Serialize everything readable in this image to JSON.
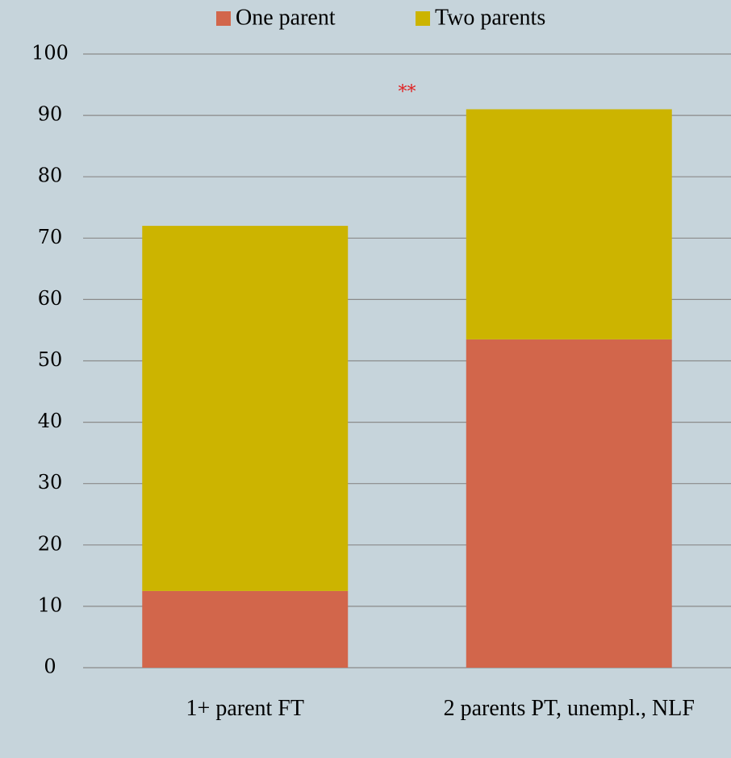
{
  "chart_data": {
    "type": "stacked_bar",
    "categories": [
      "1+ parent FT",
      "2 parents PT, unempl., NLF"
    ],
    "series": [
      {
        "name": "One parent",
        "color": "#d2664b",
        "values": [
          12.5,
          53.5
        ]
      },
      {
        "name": "Two parents",
        "color": "#ccb400",
        "values": [
          59.5,
          37.5
        ]
      }
    ],
    "annotation": "**",
    "ylim": [
      0,
      100
    ],
    "yticks": [
      0,
      10,
      20,
      30,
      40,
      50,
      60,
      70,
      80,
      90,
      100
    ],
    "grid": true,
    "legend": "top"
  }
}
